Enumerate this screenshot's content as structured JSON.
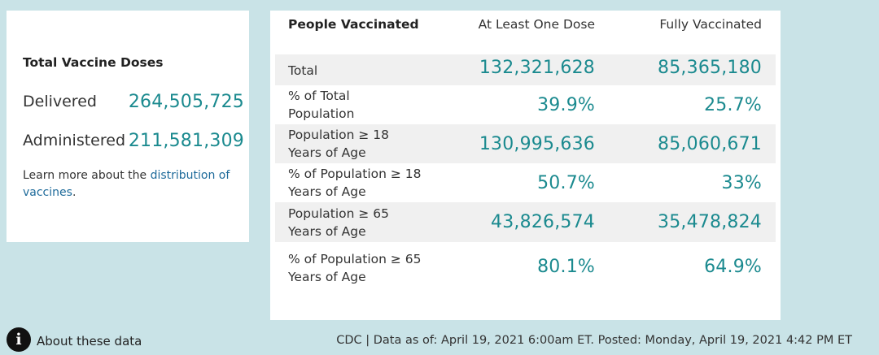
{
  "doses": {
    "title": "Total Vaccine Doses",
    "rows": [
      {
        "label": "Delivered",
        "value": "264,505,725"
      },
      {
        "label": "Administered",
        "value": "211,581,309"
      }
    ],
    "learn_more_prefix": "Learn more about the ",
    "learn_more_link": "distribution of vaccines",
    "learn_more_suffix": "."
  },
  "people": {
    "title": "People Vaccinated",
    "col1": "At Least One Dose",
    "col2": "Fully Vaccinated",
    "rows": [
      {
        "label_line1": "Total",
        "label_line2": "",
        "one_dose": "132,321,628",
        "fully": "85,365,180"
      },
      {
        "label_line1": "% of Total",
        "label_line2": "Population",
        "one_dose": "39.9%",
        "fully": "25.7%"
      },
      {
        "label_line1": "Population ≥ 18",
        "label_line2": "Years of Age",
        "one_dose": "130,995,636",
        "fully": "85,060,671"
      },
      {
        "label_line1": "% of Population ≥ 18",
        "label_line2": "Years of Age",
        "one_dose": "50.7%",
        "fully": "33%"
      },
      {
        "label_line1": "Population ≥ 65",
        "label_line2": "Years of Age",
        "one_dose": "43,826,574",
        "fully": "35,478,824"
      },
      {
        "label_line1": "% of Population ≥ 65",
        "label_line2": "Years of Age",
        "one_dose": "80.1%",
        "fully": "64.9%"
      }
    ]
  },
  "footer": {
    "info_icon_glyph": "i",
    "about_label": "About these data",
    "note": "CDC | Data as of: April 19, 2021 6:00am ET. Posted: Monday, April 19, 2021 4:42 PM ET"
  },
  "colors": {
    "page_bg": "#c9e3e7",
    "value_teal": "#1b8a8f",
    "link_blue": "#1d6a9a",
    "row_shade": "#f0f0f0"
  }
}
